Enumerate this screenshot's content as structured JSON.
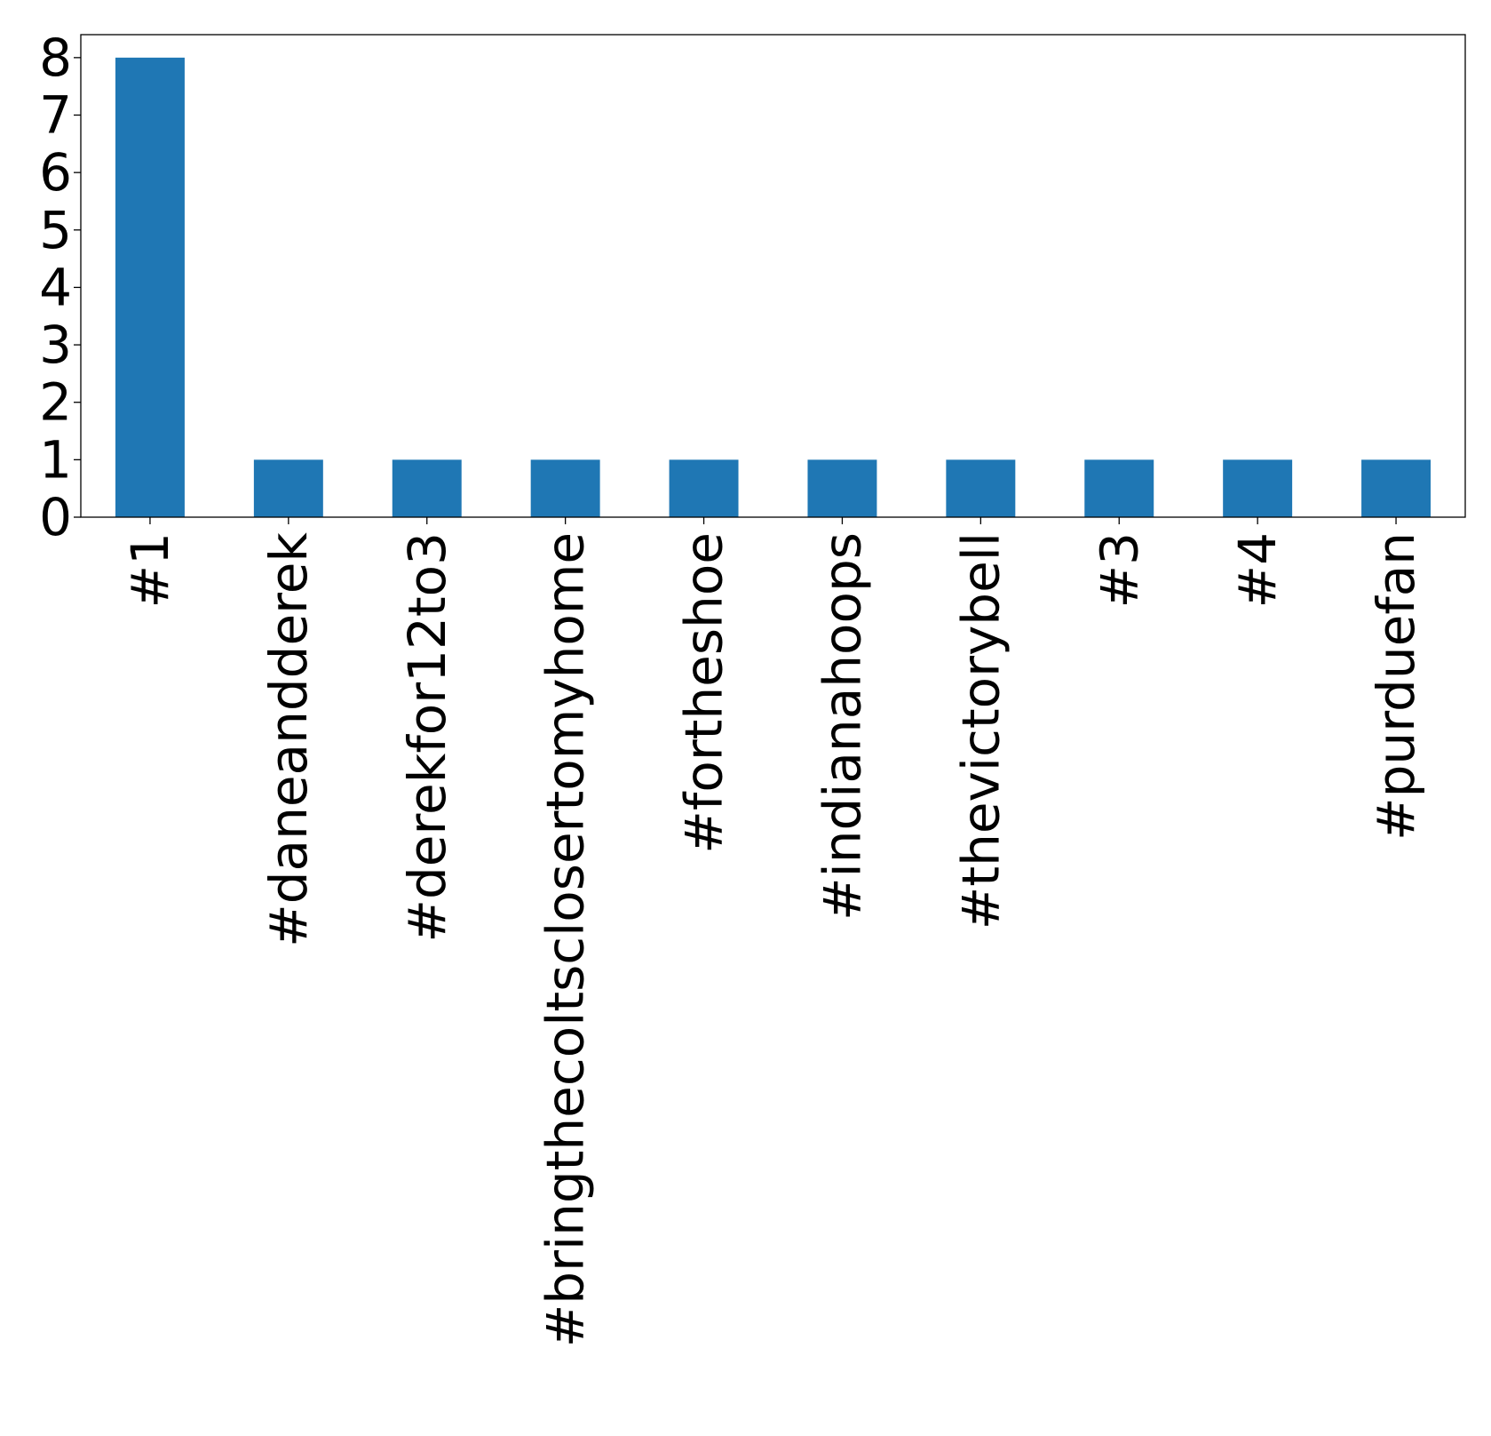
{
  "chart_data": {
    "type": "bar",
    "categories": [
      "#1",
      "#daneandderek",
      "#derekfor12to3",
      "#bringthecoltsclosertomyhome",
      "#fortheshoe",
      "#indianahoops",
      "#thevictorybell",
      "#3",
      "#4",
      "#purduefan"
    ],
    "values": [
      8,
      1,
      1,
      1,
      1,
      1,
      1,
      1,
      1,
      1
    ],
    "ylim": [
      0,
      8.4
    ],
    "yticks": [
      0,
      1,
      2,
      3,
      4,
      5,
      6,
      7,
      8
    ],
    "xlabel": "",
    "ylabel": "",
    "title": "",
    "grid": false,
    "legend": "none",
    "colors": {
      "bar": "#1f77b4",
      "axis": "#000000",
      "background": "#ffffff"
    }
  }
}
